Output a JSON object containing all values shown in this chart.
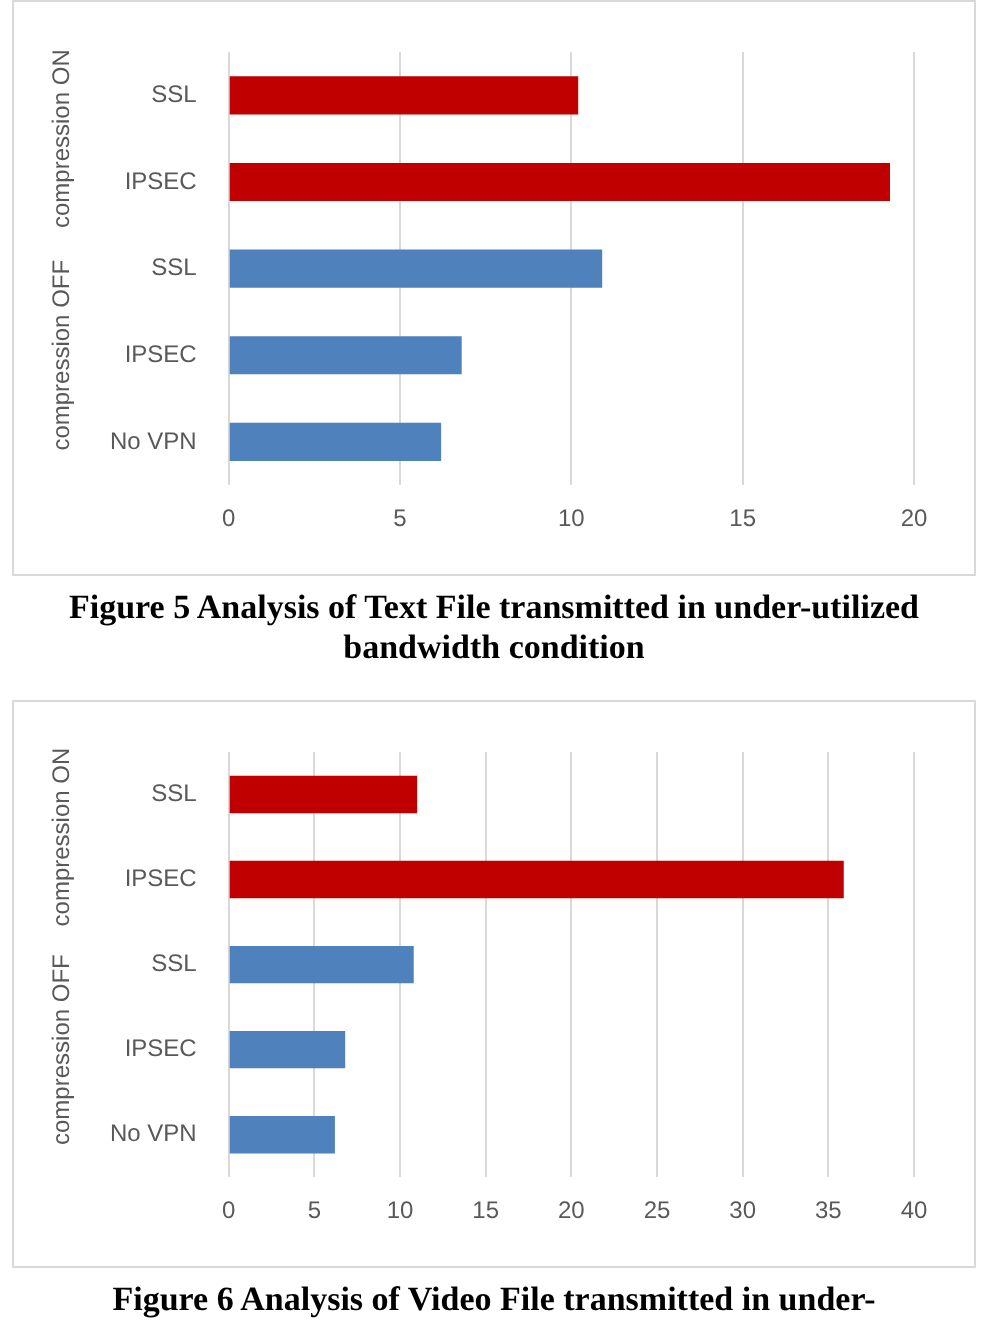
{
  "chart_data": [
    {
      "type": "bar",
      "orientation": "horizontal",
      "title": "Figure 5 Analysis of Text File transmitted in under-utilized bandwidth condition",
      "categories": [
        "SSL",
        "IPSEC",
        "SSL",
        "IPSEC",
        "No VPN"
      ],
      "values": [
        10.2,
        19.3,
        10.9,
        6.8,
        6.2
      ],
      "colors": [
        "#c00000",
        "#c00000",
        "#4f81bd",
        "#4f81bd",
        "#4f81bd"
      ],
      "xlim": [
        0,
        20
      ],
      "xticks": [
        0,
        5,
        10,
        15,
        20
      ],
      "grid": "x",
      "annotations": [
        "compression ON",
        "compression OFF"
      ]
    },
    {
      "type": "bar",
      "orientation": "horizontal",
      "title": "Figure 6 Analysis of Video File transmitted in under-",
      "categories": [
        "SSL",
        "IPSEC",
        "SSL",
        "IPSEC",
        "No VPN"
      ],
      "values": [
        11.0,
        35.9,
        10.8,
        6.8,
        6.2
      ],
      "colors": [
        "#c00000",
        "#c00000",
        "#4f81bd",
        "#4f81bd",
        "#4f81bd"
      ],
      "xlim": [
        0,
        40
      ],
      "xticks": [
        0,
        5,
        10,
        15,
        20,
        25,
        30,
        35,
        40
      ],
      "grid": "x",
      "annotations": [
        "compression ON",
        "compression OFF"
      ]
    }
  ]
}
